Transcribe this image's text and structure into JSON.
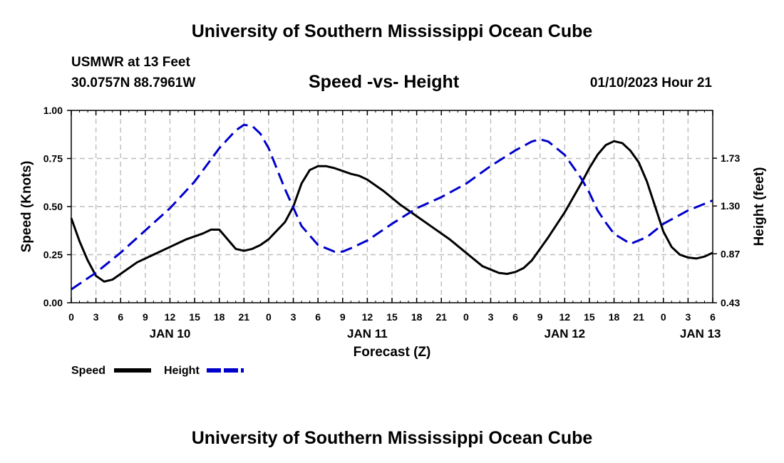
{
  "header": {
    "title": "University of Southern Mississippi Ocean Cube",
    "station": "USMWR at 13 Feet",
    "coords": "30.0757N  88.7961W",
    "subtitle": "Speed -vs- Height",
    "datetime": "01/10/2023 Hour 21"
  },
  "footer": {
    "title": "University of Southern Mississippi Ocean Cube"
  },
  "chart_data": {
    "type": "line",
    "title": "Speed -vs- Height",
    "xlabel": "Forecast (Z)",
    "ylabel": "Speed (Knots)",
    "y2label": "Height (feet)",
    "x_range": [
      0,
      78
    ],
    "ylim": [
      0,
      1.0
    ],
    "y2lim": [
      0.43,
      2.16
    ],
    "x_tick_values": [
      0,
      3,
      6,
      9,
      12,
      15,
      18,
      21,
      24,
      27,
      30,
      33,
      36,
      39,
      42,
      45,
      48,
      51,
      54,
      57,
      60,
      63,
      66,
      69,
      72,
      75,
      78
    ],
    "x_tick_labels": [
      "0",
      "3",
      "6",
      "9",
      "12",
      "15",
      "18",
      "21",
      "0",
      "3",
      "6",
      "9",
      "12",
      "15",
      "18",
      "21",
      "0",
      "3",
      "6",
      "9",
      "12",
      "15",
      "18",
      "21",
      "0",
      "3",
      "6"
    ],
    "date_labels": [
      {
        "x": 12,
        "label": "JAN 10"
      },
      {
        "x": 36,
        "label": "JAN 11"
      },
      {
        "x": 60,
        "label": "JAN 12"
      },
      {
        "x": 76.5,
        "label": "JAN 13"
      }
    ],
    "y_ticks": [
      {
        "value": 0.0,
        "label": "0.00"
      },
      {
        "value": 0.25,
        "label": "0.25"
      },
      {
        "value": 0.5,
        "label": "0.50"
      },
      {
        "value": 0.75,
        "label": "0.75"
      },
      {
        "value": 1.0,
        "label": "1.00"
      }
    ],
    "y2_ticks": [
      {
        "value": 0.43,
        "label": "0.43"
      },
      {
        "value": 0.87,
        "label": "0.87"
      },
      {
        "value": 1.3,
        "label": "1.30"
      },
      {
        "value": 1.73,
        "label": "1.73"
      }
    ],
    "grid": true,
    "legend_position": "bottom-left",
    "series": [
      {
        "name": "Speed",
        "axis": "left",
        "color": "#000000",
        "dash": "solid",
        "x": [
          0,
          1,
          2,
          3,
          4,
          5,
          6,
          8,
          10,
          12,
          14,
          16,
          17,
          18,
          19,
          20,
          21,
          22,
          23,
          24,
          26,
          27,
          28,
          29,
          30,
          31,
          32,
          34,
          35,
          36,
          38,
          40,
          42,
          44,
          46,
          48,
          50,
          52,
          53,
          54,
          55,
          56,
          58,
          60,
          62,
          63,
          64,
          65,
          66,
          67,
          68,
          69,
          70,
          71,
          72,
          73,
          74,
          75,
          76,
          77,
          78
        ],
        "values": [
          0.44,
          0.32,
          0.22,
          0.14,
          0.11,
          0.12,
          0.15,
          0.21,
          0.25,
          0.29,
          0.33,
          0.36,
          0.38,
          0.38,
          0.33,
          0.28,
          0.27,
          0.28,
          0.3,
          0.33,
          0.42,
          0.5,
          0.62,
          0.69,
          0.71,
          0.71,
          0.7,
          0.67,
          0.66,
          0.64,
          0.58,
          0.51,
          0.45,
          0.39,
          0.33,
          0.26,
          0.19,
          0.155,
          0.15,
          0.16,
          0.18,
          0.22,
          0.34,
          0.47,
          0.62,
          0.7,
          0.77,
          0.82,
          0.84,
          0.83,
          0.79,
          0.73,
          0.63,
          0.5,
          0.37,
          0.29,
          0.25,
          0.235,
          0.23,
          0.24,
          0.26
        ]
      },
      {
        "name": "Height",
        "axis": "right",
        "color": "#0000cc",
        "dash": "dashed",
        "x": [
          0,
          3,
          6,
          9,
          12,
          15,
          18,
          20,
          21,
          22,
          23,
          24,
          26,
          28,
          30,
          32,
          33,
          34,
          36,
          39,
          42,
          45,
          48,
          51,
          54,
          56,
          57,
          58,
          60,
          62,
          63,
          64,
          65,
          66,
          68,
          70,
          72,
          75,
          78
        ],
        "values": [
          0.55,
          0.7,
          0.88,
          1.08,
          1.28,
          1.52,
          1.82,
          1.98,
          2.03,
          2.02,
          1.95,
          1.82,
          1.45,
          1.12,
          0.95,
          0.89,
          0.89,
          0.92,
          0.99,
          1.14,
          1.28,
          1.38,
          1.5,
          1.66,
          1.8,
          1.88,
          1.9,
          1.88,
          1.76,
          1.55,
          1.42,
          1.26,
          1.15,
          1.05,
          0.96,
          1.02,
          1.14,
          1.26,
          1.35
        ]
      }
    ]
  }
}
